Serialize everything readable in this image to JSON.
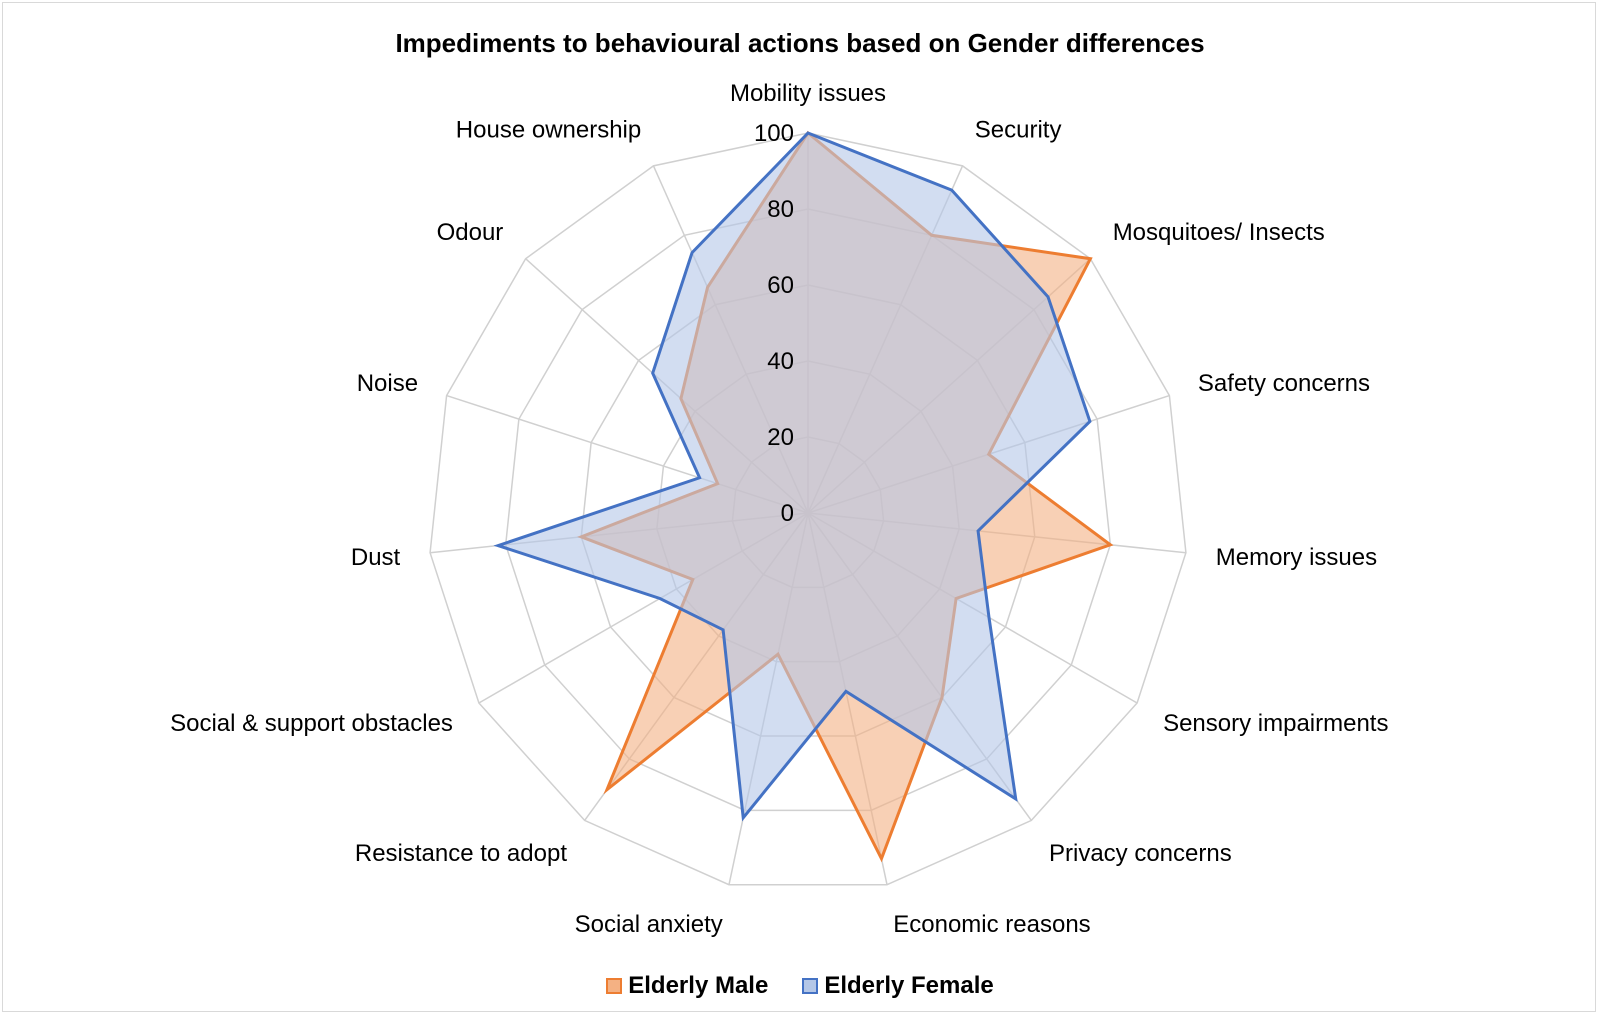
{
  "chart_data": {
    "type": "radar",
    "title": "Impediments to behavioural actions based on Gender differences",
    "categories": [
      "Mobility issues",
      "Security",
      "Mosquitoes/ Insects",
      "Safety concerns",
      "Memory issues",
      "Sensory impairments",
      "Privacy concerns",
      "Economic reasons",
      "Social anxiety",
      "Resistance to adopt",
      "Social & support obstacles",
      "Dust",
      "Noise",
      "Odour",
      "House ownership"
    ],
    "rlim": [
      0,
      100
    ],
    "ticks": [
      "0",
      "20",
      "40",
      "60",
      "80",
      "100"
    ],
    "tick_values": [
      0,
      20,
      40,
      60,
      80,
      100
    ],
    "grid": true,
    "legend_position": "bottom",
    "series": [
      {
        "name": "Elderly Male",
        "color": "#ed7d31",
        "fill": "#f4b183",
        "values": [
          100,
          80,
          100,
          50,
          80,
          45,
          60,
          93,
          38,
          90,
          35,
          60,
          25,
          45,
          65
        ]
      },
      {
        "name": "Elderly Female",
        "color": "#4472c4",
        "fill": "#b4c7e7",
        "values": [
          100,
          93,
          85,
          78,
          45,
          55,
          93,
          48,
          82,
          38,
          45,
          82,
          30,
          55,
          75
        ]
      }
    ]
  }
}
